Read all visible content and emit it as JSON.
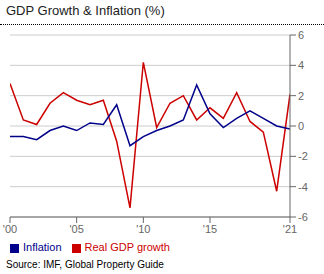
{
  "chart_data": {
    "type": "line",
    "title": "GDP Growth & Inflation (%)",
    "annotations": [
      "Source: IMF, Global Property Guide"
    ],
    "x": [
      2000,
      2001,
      2002,
      2003,
      2004,
      2005,
      2006,
      2007,
      2008,
      2009,
      2010,
      2011,
      2012,
      2013,
      2014,
      2015,
      2016,
      2017,
      2018,
      2019,
      2020,
      2021
    ],
    "series": [
      {
        "name": "Real GDP growth",
        "color": "#cc0000",
        "values": [
          2.8,
          0.4,
          0.1,
          1.5,
          2.2,
          1.7,
          1.4,
          1.7,
          -1.0,
          -5.4,
          4.2,
          -0.1,
          1.5,
          2.0,
          0.4,
          1.2,
          0.5,
          2.2,
          0.3,
          -0.4,
          -4.3,
          2.1
        ]
      },
      {
        "name": "Inflation",
        "color": "#00008b",
        "values": [
          -0.7,
          -0.7,
          -0.9,
          -0.3,
          0.0,
          -0.3,
          0.2,
          0.1,
          1.4,
          -1.3,
          -0.7,
          -0.3,
          0.0,
          0.4,
          2.7,
          0.8,
          -0.1,
          0.5,
          1.0,
          0.5,
          0.0,
          -0.2
        ]
      }
    ],
    "xlim": [
      2000,
      2021
    ],
    "xticks": [
      {
        "value": 2000,
        "label": "'00"
      },
      {
        "value": 2005,
        "label": "'05"
      },
      {
        "value": 2010,
        "label": "'10"
      },
      {
        "value": 2015,
        "label": "'15"
      },
      {
        "value": 2021,
        "label": "'21"
      }
    ],
    "ylim": [
      -6,
      6
    ],
    "yticks": [
      -6,
      -4,
      -2,
      0,
      2,
      4,
      6
    ],
    "grid": true,
    "legend": "bottom"
  }
}
